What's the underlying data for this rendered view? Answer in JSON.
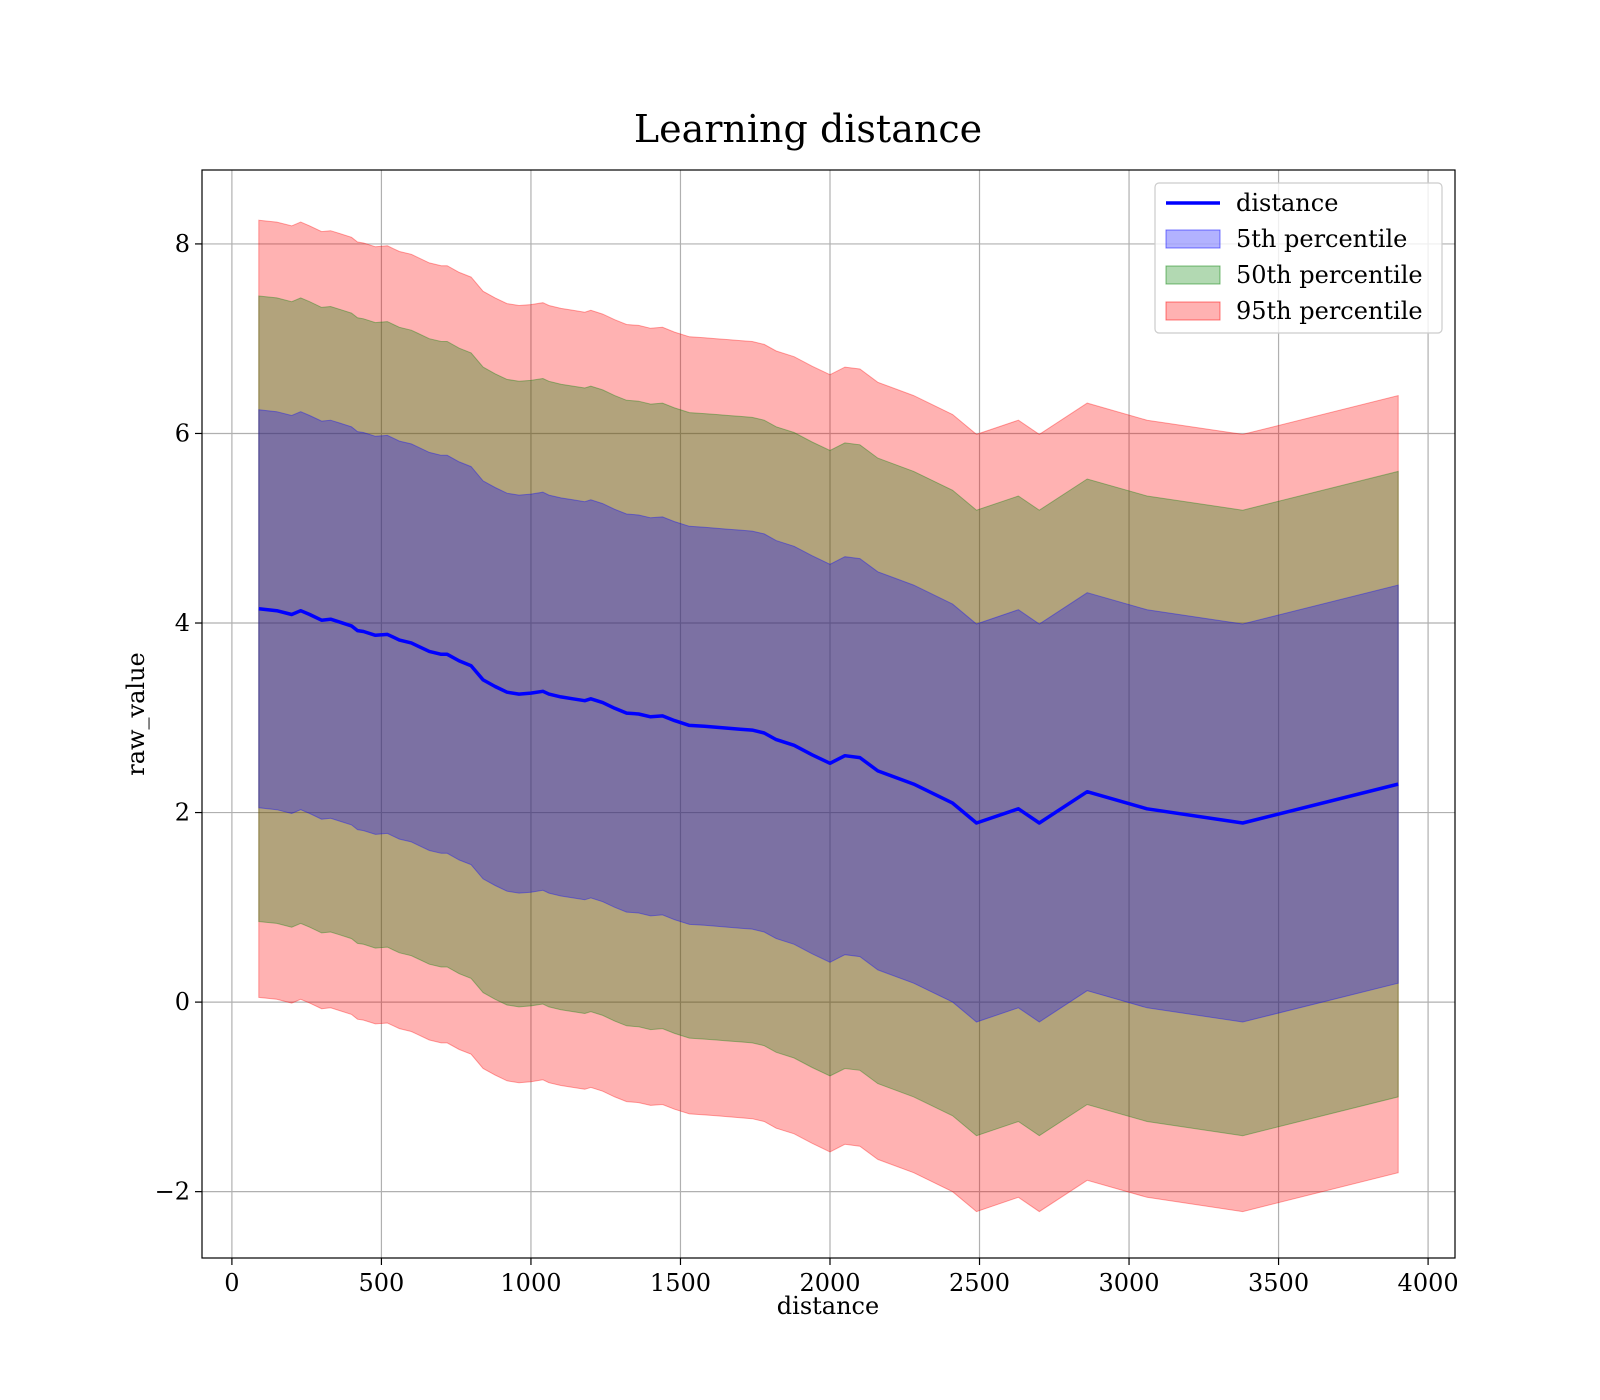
{
  "chart_data": {
    "type": "area",
    "title": "Learning distance",
    "xlabel": "distance",
    "ylabel": "raw_value",
    "xlim": [
      -100,
      4090
    ],
    "ylim": [
      -2.7,
      8.78
    ],
    "xticks": [
      0,
      500,
      1000,
      1500,
      2000,
      2500,
      3000,
      3500,
      4000
    ],
    "yticks": [
      -2,
      0,
      2,
      4,
      6,
      8
    ],
    "xtick_labels": [
      "0",
      "500",
      "1000",
      "1500",
      "2000",
      "2500",
      "3000",
      "3500",
      "4000"
    ],
    "ytick_labels": [
      "−2",
      "0",
      "2",
      "4",
      "6",
      "8"
    ],
    "grid": true,
    "legend_position": "top-right",
    "x": [
      90,
      150,
      200,
      230,
      260,
      300,
      330,
      360,
      400,
      420,
      440,
      480,
      520,
      540,
      560,
      600,
      620,
      660,
      700,
      720,
      760,
      800,
      840,
      880,
      920,
      960,
      1000,
      1040,
      1060,
      1100,
      1140,
      1180,
      1200,
      1240,
      1280,
      1320,
      1360,
      1400,
      1440,
      1480,
      1530,
      1580,
      1620,
      1660,
      1700,
      1740,
      1780,
      1820,
      1880,
      1940,
      2000,
      2050,
      2100,
      2160,
      2280,
      2410,
      2490,
      2630,
      2700,
      2860,
      3060,
      3380,
      3900
    ],
    "series": [
      {
        "name": "distance",
        "kind": "line",
        "color": "#0000ff",
        "values": [
          4.15,
          4.13,
          4.09,
          4.13,
          4.09,
          4.03,
          4.04,
          4.01,
          3.97,
          3.92,
          3.91,
          3.87,
          3.88,
          3.85,
          3.82,
          3.79,
          3.76,
          3.7,
          3.67,
          3.67,
          3.6,
          3.55,
          3.4,
          3.33,
          3.27,
          3.25,
          3.26,
          3.28,
          3.25,
          3.22,
          3.2,
          3.18,
          3.2,
          3.16,
          3.1,
          3.05,
          3.04,
          3.01,
          3.02,
          2.97,
          2.92,
          2.91,
          2.9,
          2.89,
          2.88,
          2.87,
          2.84,
          2.77,
          2.71,
          2.61,
          2.52,
          2.6,
          2.58,
          2.44,
          2.3,
          2.1,
          1.89,
          2.04,
          1.89,
          2.22,
          2.04,
          1.89,
          2.3
        ]
      },
      {
        "name": "5th percentile",
        "kind": "band",
        "color": "#0000ff",
        "alpha": 0.3,
        "offset": 2.1
      },
      {
        "name": "50th percentile",
        "kind": "band",
        "color": "#008000",
        "alpha": 0.3,
        "offset": 3.3
      },
      {
        "name": "95th percentile",
        "kind": "band",
        "color": "#ff0000",
        "alpha": 0.3,
        "offset": 4.1
      }
    ]
  }
}
